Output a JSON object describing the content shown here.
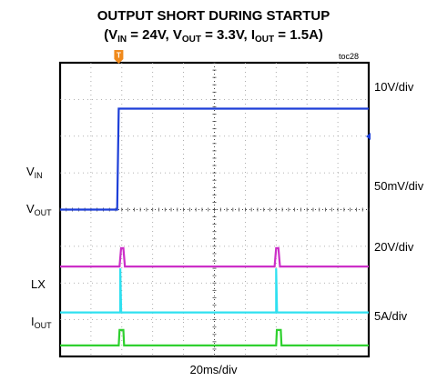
{
  "title": {
    "line1": "OUTPUT SHORT DURING STARTUP",
    "p1": "(V",
    "s1": "IN",
    "p2": " = 24V, V",
    "s2": "OUT",
    "p3": " = 3.3V, I",
    "s3": "OUT",
    "p4": " = 1.5A)"
  },
  "figure_id": "toc28",
  "trigger_marker": "T",
  "channels": [
    {
      "main": "V",
      "sub": "IN",
      "scale": "10V/div",
      "color": "#1d3fd8"
    },
    {
      "main": "V",
      "sub": "OUT",
      "scale": "50mV/div",
      "color": "#cc2fc8"
    },
    {
      "main": "LX",
      "sub": "",
      "scale": "20V/div",
      "color": "#2fe0f0"
    },
    {
      "main": "I",
      "sub": "OUT",
      "scale": "5A/div",
      "color": "#2fd02f"
    }
  ],
  "xscale": "20ms/div",
  "chart_data": {
    "type": "line",
    "title": "OUTPUT SHORT DURING STARTUP (VIN = 24V, VOUT = 3.3V, IOUT = 1.5A)",
    "x_unit": "ms",
    "x_range": [
      0,
      200
    ],
    "x_div": 20,
    "grid": true,
    "series": [
      {
        "name": "VIN",
        "scale": "10V/div",
        "x": [
          0,
          37,
          38,
          200
        ],
        "y_div": [
          4.0,
          4.0,
          6.75,
          6.75
        ]
      },
      {
        "name": "VOUT",
        "scale": "50mV/div",
        "x": [
          0,
          38.5,
          39.5,
          41,
          42,
          139,
          140,
          141.5,
          142.5,
          200
        ],
        "y_div": [
          2.45,
          2.45,
          2.95,
          2.95,
          2.45,
          2.45,
          2.95,
          2.95,
          2.45,
          2.45
        ]
      },
      {
        "name": "LX",
        "scale": "20V/div",
        "x": [
          0,
          39,
          39,
          39.6,
          140,
          140,
          140.6,
          200
        ],
        "y_div": [
          1.2,
          1.2,
          2.4,
          1.2,
          1.2,
          2.4,
          1.2,
          1.2
        ]
      },
      {
        "name": "IOUT",
        "scale": "5A/div",
        "x": [
          0,
          38,
          38.5,
          41,
          41.5,
          140,
          140.5,
          143,
          143.5,
          200
        ],
        "y_div": [
          0.3,
          0.3,
          0.72,
          0.72,
          0.3,
          0.3,
          0.72,
          0.72,
          0.3,
          0.3
        ]
      }
    ]
  }
}
